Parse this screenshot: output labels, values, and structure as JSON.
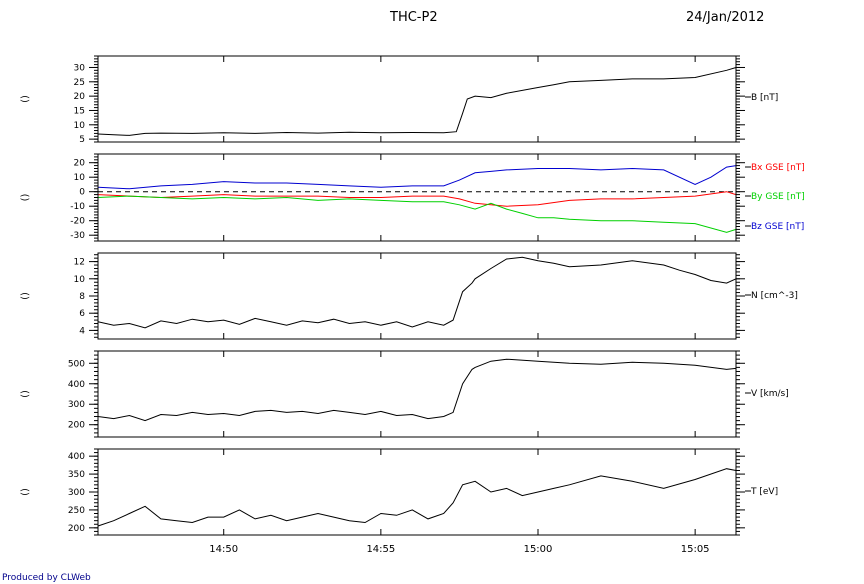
{
  "header": {
    "title": "THC-P2",
    "date": "24/Jan/2012"
  },
  "footer": {
    "credit": "Produced by CLWeb"
  },
  "chart_data": {
    "type": "line",
    "x_ticks": [
      "14:50",
      "14:55",
      "15:00",
      "15:05"
    ],
    "x_tick_minutes": [
      4,
      9,
      14,
      19
    ],
    "x_range_minutes": [
      0,
      20.3
    ],
    "x_origin": "14:46",
    "panels": [
      {
        "id": "b",
        "left_label": "()",
        "ylim": [
          4,
          34
        ],
        "yticks": [
          5,
          10,
          15,
          20,
          25,
          30
        ],
        "zero_line": false,
        "series": [
          {
            "name": "B [nT]",
            "color": "#000000",
            "points": [
              [
                0,
                6.8
              ],
              [
                0.5,
                6.5
              ],
              [
                1,
                6.3
              ],
              [
                1.5,
                7.0
              ],
              [
                2,
                7.1
              ],
              [
                3,
                7.0
              ],
              [
                4,
                7.2
              ],
              [
                5,
                7.0
              ],
              [
                6,
                7.3
              ],
              [
                7,
                7.1
              ],
              [
                8,
                7.4
              ],
              [
                9,
                7.2
              ],
              [
                10,
                7.3
              ],
              [
                11,
                7.2
              ],
              [
                11.4,
                7.6
              ],
              [
                11.6,
                14
              ],
              [
                11.75,
                19
              ],
              [
                12,
                20
              ],
              [
                12.5,
                19.5
              ],
              [
                13,
                21
              ],
              [
                14,
                23
              ],
              [
                14.5,
                24
              ],
              [
                15,
                25
              ],
              [
                16,
                25.5
              ],
              [
                17,
                26
              ],
              [
                18,
                26
              ],
              [
                19,
                26.5
              ],
              [
                20,
                29
              ],
              [
                20.3,
                30
              ]
            ]
          }
        ]
      },
      {
        "id": "bgse",
        "left_label": "()",
        "ylim": [
          -34,
          26
        ],
        "yticks": [
          -30,
          -20,
          -10,
          0,
          10,
          20
        ],
        "zero_line": true,
        "series": [
          {
            "name": "Bx GSE [nT]",
            "color": "#ff0000",
            "points": [
              [
                0,
                -2
              ],
              [
                1,
                -3
              ],
              [
                2,
                -4
              ],
              [
                3,
                -3
              ],
              [
                4,
                -2
              ],
              [
                5,
                -3
              ],
              [
                6,
                -3
              ],
              [
                7,
                -3
              ],
              [
                8,
                -4
              ],
              [
                9,
                -4
              ],
              [
                10,
                -3
              ],
              [
                11,
                -3
              ],
              [
                11.5,
                -5
              ],
              [
                12,
                -8
              ],
              [
                13,
                -10
              ],
              [
                14,
                -9
              ],
              [
                15,
                -6
              ],
              [
                16,
                -5
              ],
              [
                17,
                -5
              ],
              [
                18,
                -4
              ],
              [
                19,
                -3
              ],
              [
                20,
                0
              ],
              [
                20.3,
                -2
              ]
            ]
          },
          {
            "name": "By GSE [nT]",
            "color": "#00d000",
            "points": [
              [
                0,
                -4
              ],
              [
                1,
                -3
              ],
              [
                2,
                -4
              ],
              [
                3,
                -5
              ],
              [
                4,
                -4
              ],
              [
                5,
                -5
              ],
              [
                6,
                -4
              ],
              [
                7,
                -6
              ],
              [
                8,
                -5
              ],
              [
                9,
                -6
              ],
              [
                10,
                -7
              ],
              [
                11,
                -7
              ],
              [
                11.5,
                -9
              ],
              [
                12,
                -12
              ],
              [
                12.5,
                -8
              ],
              [
                13,
                -12
              ],
              [
                13.5,
                -15
              ],
              [
                14,
                -18
              ],
              [
                14.5,
                -18
              ],
              [
                15,
                -19
              ],
              [
                16,
                -20
              ],
              [
                17,
                -20
              ],
              [
                18,
                -21
              ],
              [
                19,
                -22
              ],
              [
                20,
                -28
              ],
              [
                20.3,
                -26
              ]
            ]
          },
          {
            "name": "Bz GSE [nT]",
            "color": "#0000d0",
            "points": [
              [
                0,
                3
              ],
              [
                1,
                2
              ],
              [
                2,
                4
              ],
              [
                3,
                5
              ],
              [
                4,
                7
              ],
              [
                5,
                6
              ],
              [
                6,
                6
              ],
              [
                7,
                5
              ],
              [
                8,
                4
              ],
              [
                9,
                3
              ],
              [
                10,
                4
              ],
              [
                11,
                4
              ],
              [
                11.5,
                8
              ],
              [
                12,
                13
              ],
              [
                12.5,
                14
              ],
              [
                13,
                15
              ],
              [
                14,
                16
              ],
              [
                15,
                16
              ],
              [
                16,
                15
              ],
              [
                17,
                16
              ],
              [
                18,
                15
              ],
              [
                19,
                5
              ],
              [
                19.5,
                10
              ],
              [
                20,
                17
              ],
              [
                20.3,
                18
              ]
            ]
          }
        ]
      },
      {
        "id": "n",
        "left_label": "()",
        "ylim": [
          3,
          13
        ],
        "yticks": [
          4,
          6,
          8,
          10,
          12
        ],
        "zero_line": false,
        "series": [
          {
            "name": "N [cm^-3]",
            "color": "#000000",
            "points": [
              [
                0,
                5
              ],
              [
                0.5,
                4.6
              ],
              [
                1,
                4.8
              ],
              [
                1.5,
                4.3
              ],
              [
                2,
                5.1
              ],
              [
                2.5,
                4.8
              ],
              [
                3,
                5.3
              ],
              [
                3.5,
                5.0
              ],
              [
                4,
                5.2
              ],
              [
                4.5,
                4.7
              ],
              [
                5,
                5.4
              ],
              [
                5.5,
                5.0
              ],
              [
                6,
                4.6
              ],
              [
                6.5,
                5.1
              ],
              [
                7,
                4.9
              ],
              [
                7.5,
                5.3
              ],
              [
                8,
                4.8
              ],
              [
                8.5,
                5.0
              ],
              [
                9,
                4.6
              ],
              [
                9.5,
                5.0
              ],
              [
                10,
                4.4
              ],
              [
                10.5,
                5.0
              ],
              [
                11,
                4.6
              ],
              [
                11.3,
                5.2
              ],
              [
                11.6,
                8.5
              ],
              [
                11.9,
                9.5
              ],
              [
                12,
                10
              ],
              [
                12.5,
                11.2
              ],
              [
                13,
                12.3
              ],
              [
                13.5,
                12.5
              ],
              [
                14,
                12.1
              ],
              [
                14.5,
                11.8
              ],
              [
                15,
                11.4
              ],
              [
                16,
                11.6
              ],
              [
                17,
                12.1
              ],
              [
                18,
                11.6
              ],
              [
                18.5,
                11.0
              ],
              [
                19,
                10.5
              ],
              [
                19.5,
                9.8
              ],
              [
                20,
                9.5
              ],
              [
                20.3,
                10.0
              ]
            ]
          }
        ]
      },
      {
        "id": "v",
        "left_label": "()",
        "ylim": [
          140,
          560
        ],
        "yticks": [
          200,
          300,
          400,
          500
        ],
        "zero_line": false,
        "series": [
          {
            "name": "V [km/s]",
            "color": "#000000",
            "points": [
              [
                0,
                240
              ],
              [
                0.5,
                230
              ],
              [
                1,
                245
              ],
              [
                1.5,
                220
              ],
              [
                2,
                250
              ],
              [
                2.5,
                245
              ],
              [
                3,
                260
              ],
              [
                3.5,
                250
              ],
              [
                4,
                255
              ],
              [
                4.5,
                245
              ],
              [
                5,
                265
              ],
              [
                5.5,
                270
              ],
              [
                6,
                260
              ],
              [
                6.5,
                265
              ],
              [
                7,
                255
              ],
              [
                7.5,
                270
              ],
              [
                8,
                260
              ],
              [
                8.5,
                250
              ],
              [
                9,
                265
              ],
              [
                9.5,
                245
              ],
              [
                10,
                250
              ],
              [
                10.5,
                230
              ],
              [
                11,
                240
              ],
              [
                11.3,
                260
              ],
              [
                11.6,
                400
              ],
              [
                11.9,
                470
              ],
              [
                12,
                480
              ],
              [
                12.5,
                510
              ],
              [
                13,
                520
              ],
              [
                14,
                510
              ],
              [
                15,
                500
              ],
              [
                16,
                495
              ],
              [
                17,
                505
              ],
              [
                18,
                500
              ],
              [
                19,
                490
              ],
              [
                20,
                470
              ],
              [
                20.3,
                475
              ]
            ]
          }
        ]
      },
      {
        "id": "t",
        "left_label": "()",
        "ylim": [
          180,
          420
        ],
        "yticks": [
          200,
          250,
          300,
          350,
          400
        ],
        "zero_line": false,
        "series": [
          {
            "name": "T [eV]",
            "color": "#000000",
            "points": [
              [
                0,
                205
              ],
              [
                0.5,
                220
              ],
              [
                1,
                240
              ],
              [
                1.5,
                260
              ],
              [
                2,
                225
              ],
              [
                2.5,
                220
              ],
              [
                3,
                215
              ],
              [
                3.5,
                230
              ],
              [
                4,
                230
              ],
              [
                4.5,
                250
              ],
              [
                5,
                225
              ],
              [
                5.5,
                235
              ],
              [
                6,
                220
              ],
              [
                6.5,
                230
              ],
              [
                7,
                240
              ],
              [
                7.5,
                230
              ],
              [
                8,
                220
              ],
              [
                8.5,
                215
              ],
              [
                9,
                240
              ],
              [
                9.5,
                235
              ],
              [
                10,
                250
              ],
              [
                10.5,
                225
              ],
              [
                11,
                240
              ],
              [
                11.3,
                270
              ],
              [
                11.6,
                320
              ],
              [
                12,
                330
              ],
              [
                12.5,
                300
              ],
              [
                13,
                310
              ],
              [
                13.5,
                290
              ],
              [
                14,
                300
              ],
              [
                14.5,
                310
              ],
              [
                15,
                320
              ],
              [
                16,
                345
              ],
              [
                17,
                330
              ],
              [
                18,
                310
              ],
              [
                19,
                335
              ],
              [
                20,
                365
              ],
              [
                20.3,
                360
              ]
            ]
          }
        ]
      }
    ]
  }
}
